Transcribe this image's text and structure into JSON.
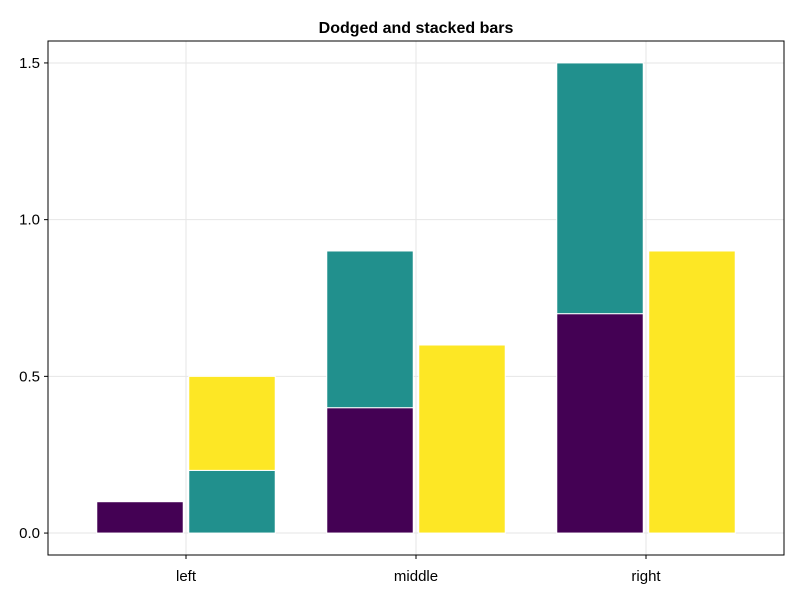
{
  "chart_data": {
    "type": "bar",
    "mode": "dodged-and-stacked",
    "title": "Dodged and stacked bars",
    "xlabel": "",
    "ylabel": "",
    "categories": [
      "left",
      "middle",
      "right"
    ],
    "ylim": [
      -0.07,
      1.57
    ],
    "yticks": [
      0.0,
      0.5,
      1.0,
      1.5
    ],
    "ytick_labels": [
      "0.0",
      "0.5",
      "1.0",
      "1.5"
    ],
    "grid": true,
    "series": [
      {
        "color": "#440154",
        "dodge": 1,
        "stack": 1,
        "values": [
          0.1,
          0.4,
          0.7
        ]
      },
      {
        "color": "#21908d",
        "dodge": 2,
        "stack": 1,
        "values": [
          0.2,
          null,
          null
        ]
      },
      {
        "color": "#21908d",
        "dodge": 1,
        "stack": 2,
        "values": [
          null,
          0.5,
          0.8
        ]
      },
      {
        "color": "#fde725",
        "dodge": 2,
        "stack": 2,
        "values": [
          0.3,
          0.6,
          0.9
        ]
      }
    ]
  }
}
